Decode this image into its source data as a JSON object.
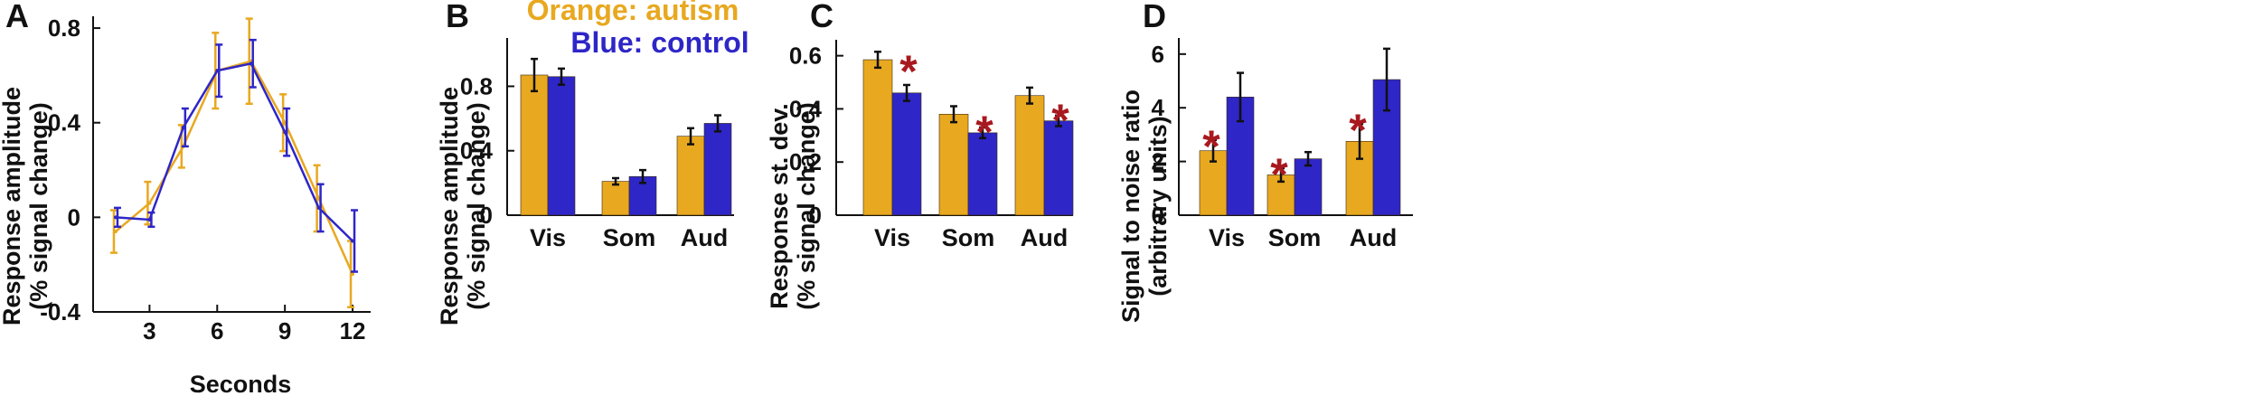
{
  "colors": {
    "autism": "#e8a820",
    "control": "#2e26c7",
    "star": "#a8191f",
    "axis": "#111111"
  },
  "legend": {
    "autism": "Orange: autism",
    "control": "Blue: control"
  },
  "star_symbol": "*",
  "chart_data": [
    {
      "id": "A",
      "type": "line",
      "letter": "A",
      "xlabel": "Seconds",
      "ylabel": [
        "Response amplitude",
        "(% signal change)"
      ],
      "xlim": [
        0.5,
        12.8
      ],
      "ylim": [
        -0.4,
        0.85
      ],
      "xticks": [
        3,
        6,
        9,
        12
      ],
      "xtick_labels": [
        "3",
        "6",
        "9",
        "12"
      ],
      "yticks": [
        -0.4,
        0,
        0.4,
        0.8
      ],
      "ytick_labels": [
        "-0.4",
        "0",
        "0.4",
        "0.8"
      ],
      "series": [
        {
          "name": "autism",
          "x": [
            1.5,
            3,
            4.5,
            6,
            7.5,
            9,
            10.5,
            12
          ],
          "y": [
            -0.06,
            0.06,
            0.3,
            0.62,
            0.66,
            0.4,
            0.08,
            -0.24
          ],
          "err": [
            0.09,
            0.09,
            0.09,
            0.16,
            0.18,
            0.12,
            0.14,
            0.14
          ]
        },
        {
          "name": "control",
          "x": [
            1.5,
            3,
            4.5,
            6,
            7.5,
            9,
            10.5,
            12
          ],
          "y": [
            0.0,
            -0.01,
            0.38,
            0.62,
            0.65,
            0.36,
            0.04,
            -0.1
          ],
          "err": [
            0.04,
            0.03,
            0.08,
            0.11,
            0.1,
            0.1,
            0.1,
            0.13
          ]
        }
      ]
    },
    {
      "id": "B",
      "type": "bar",
      "letter": "B",
      "ylabel": [
        "Response amplitude",
        "(% signal change)"
      ],
      "categories": [
        "Vis",
        "Som",
        "Aud"
      ],
      "ylim": [
        0,
        1.1
      ],
      "yticks": [
        0,
        0.4,
        0.8
      ],
      "ytick_labels": [
        "0",
        "0.4",
        "0.8"
      ],
      "series": [
        {
          "name": "autism",
          "values": [
            0.87,
            0.21,
            0.49
          ],
          "err": [
            0.1,
            0.02,
            0.05
          ]
        },
        {
          "name": "control",
          "values": [
            0.86,
            0.24,
            0.57
          ],
          "err": [
            0.05,
            0.04,
            0.05
          ]
        }
      ],
      "significant": [
        false,
        false,
        false
      ]
    },
    {
      "id": "C",
      "type": "bar",
      "letter": "C",
      "ylabel": [
        "Response st. dev.",
        "(% signal change)"
      ],
      "categories": [
        "Vis",
        "Som",
        "Aud"
      ],
      "ylim": [
        0,
        0.66
      ],
      "yticks": [
        0,
        0.2,
        0.4,
        0.6
      ],
      "ytick_labels": [
        "0",
        "0.2",
        "0.4",
        "0.6"
      ],
      "series": [
        {
          "name": "autism",
          "values": [
            0.585,
            0.38,
            0.45
          ],
          "err": [
            0.03,
            0.03,
            0.03
          ]
        },
        {
          "name": "control",
          "values": [
            0.46,
            0.31,
            0.355
          ],
          "err": [
            0.03,
            0.02,
            0.02
          ]
        }
      ],
      "significant": [
        true,
        true,
        true
      ]
    },
    {
      "id": "D",
      "type": "bar",
      "letter": "D",
      "ylabel": [
        "Signal to noise ratio",
        "(arbitrary units)"
      ],
      "categories": [
        "Vis",
        "Som",
        "Aud"
      ],
      "ylim": [
        0,
        6.6
      ],
      "yticks": [
        0,
        2,
        4,
        6
      ],
      "ytick_labels": [
        "0",
        "2",
        "4",
        "6"
      ],
      "series": [
        {
          "name": "autism",
          "values": [
            2.4,
            1.5,
            2.75
          ],
          "err": [
            0.4,
            0.25,
            0.65
          ]
        },
        {
          "name": "control",
          "values": [
            4.4,
            2.1,
            5.05
          ],
          "err": [
            0.9,
            0.25,
            1.15
          ]
        }
      ],
      "significant": [
        true,
        true,
        true
      ]
    }
  ]
}
